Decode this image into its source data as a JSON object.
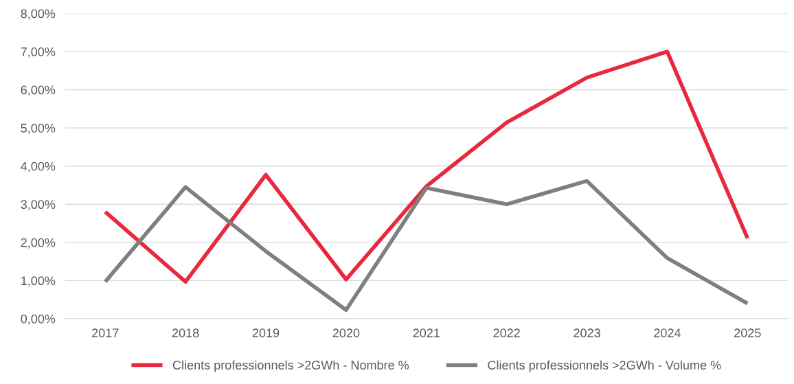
{
  "chart_data": {
    "type": "line",
    "categories": [
      "2017",
      "2018",
      "2019",
      "2020",
      "2021",
      "2022",
      "2023",
      "2024",
      "2025"
    ],
    "series": [
      {
        "name": "Clients professionnels >2GWh - Nombre %",
        "color": "#e8283c",
        "values": [
          2.8,
          0.97,
          3.77,
          1.03,
          3.47,
          5.14,
          6.32,
          7.0,
          2.11
        ]
      },
      {
        "name": "Clients professionnels >2GWh - Volume %",
        "color": "#7f7f7f",
        "values": [
          0.97,
          3.45,
          1.77,
          0.23,
          3.43,
          3.0,
          3.61,
          1.59,
          0.4
        ]
      }
    ],
    "ylim": [
      0,
      8
    ],
    "yticks": [
      {
        "value": 0,
        "label": "0,00%"
      },
      {
        "value": 1,
        "label": "1,00%"
      },
      {
        "value": 2,
        "label": "2,00%"
      },
      {
        "value": 3,
        "label": "3,00%"
      },
      {
        "value": 4,
        "label": "4,00%"
      },
      {
        "value": 5,
        "label": "5,00%"
      },
      {
        "value": 6,
        "label": "6,00%"
      },
      {
        "value": 7,
        "label": "7,00%"
      },
      {
        "value": 8,
        "label": "8,00%"
      }
    ],
    "grid": "y",
    "legend": "bottom",
    "marker": "none",
    "line_style": "solid"
  }
}
